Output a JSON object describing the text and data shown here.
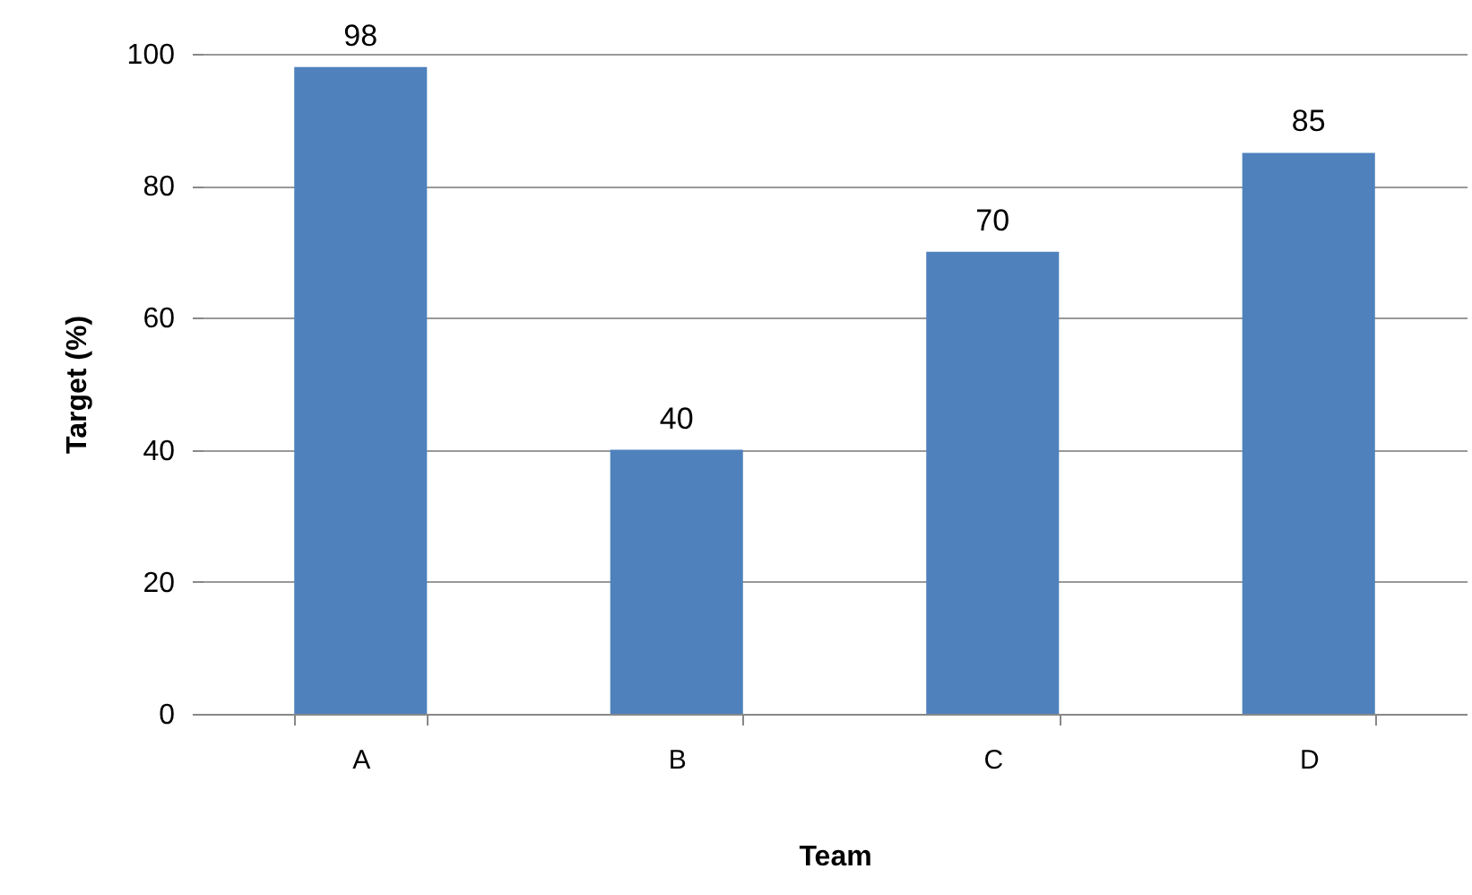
{
  "chart_data": {
    "type": "bar",
    "xlabel": "Team",
    "ylabel": "Target (%)",
    "categories": [
      "A",
      "B",
      "C",
      "D"
    ],
    "values": [
      98,
      40,
      70,
      85
    ],
    "color": "#4f81bd",
    "ylim": [
      0,
      100
    ],
    "yticks": [
      0,
      20,
      40,
      60,
      80,
      100
    ],
    "grid": "y",
    "data_labels": true
  }
}
